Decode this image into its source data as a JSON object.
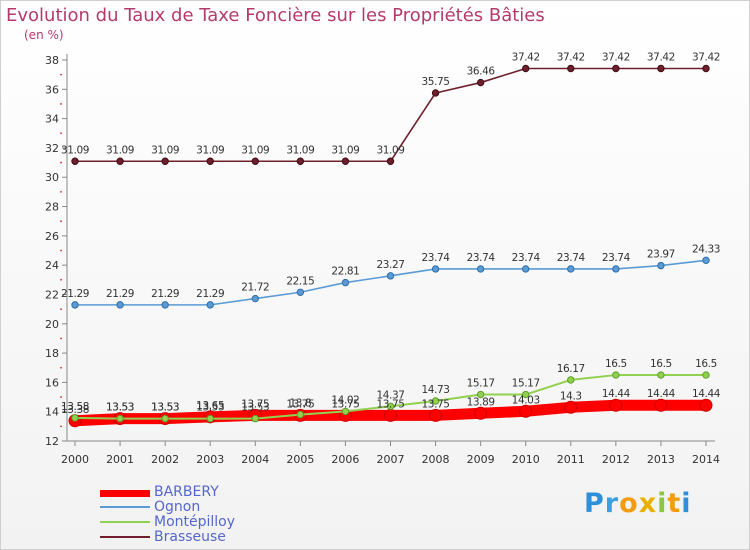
{
  "chart_data": {
    "type": "line",
    "title": "Evolution du Taux de Taxe Foncière sur les Propriétés Bâties",
    "ylabel": "(en %)",
    "xlabel": "",
    "x": [
      "2000",
      "2001",
      "2002",
      "2003",
      "2004",
      "2005",
      "2006",
      "2007",
      "2008",
      "2009",
      "2010",
      "2011",
      "2012",
      "2013",
      "2014"
    ],
    "ylim": [
      12,
      38
    ],
    "yticks": [
      12,
      14,
      16,
      18,
      20,
      22,
      24,
      26,
      28,
      30,
      32,
      34,
      36,
      38
    ],
    "grid": false,
    "legend_position": "bottom-left",
    "series": [
      {
        "name": "BARBERY",
        "color": "#ff0000",
        "values": [
          13.38,
          13.53,
          13.53,
          13.65,
          13.75,
          13.75,
          13.75,
          13.75,
          13.75,
          13.89,
          14.03,
          14.3,
          14.44,
          14.44,
          14.44
        ],
        "labels": [
          "13.38",
          "13.53",
          "13.53",
          "13.65",
          "13.75",
          "13.75",
          "13.75",
          "13.75",
          "13.75",
          "13.89",
          "14.03",
          "14.3",
          "14.44",
          "14.44",
          "14.44"
        ]
      },
      {
        "name": "Ognon",
        "color": "#5b9bd5",
        "values": [
          21.29,
          21.29,
          21.29,
          21.29,
          21.72,
          22.15,
          22.81,
          23.27,
          23.74,
          23.74,
          23.74,
          23.74,
          23.74,
          23.97,
          24.33
        ],
        "labels": [
          "21.29",
          "21.29",
          "21.29",
          "21.29",
          "21.72",
          "22.15",
          "22.81",
          "23.27",
          "23.74",
          "23.74",
          "23.74",
          "23.74",
          "23.74",
          "23.97",
          "24.33"
        ]
      },
      {
        "name": "Montépilloy",
        "color": "#92d050",
        "values": [
          13.58,
          13.53,
          13.53,
          13.53,
          13.53,
          13.8,
          14.02,
          14.37,
          14.73,
          15.17,
          15.17,
          16.17,
          16.5,
          16.5,
          16.5
        ],
        "labels": [
          "13.58",
          "13.53",
          "13.53",
          "13.53",
          "13.53",
          "13.8",
          "14.02",
          "14.37",
          "14.73",
          "15.17",
          "15.17",
          "16.17",
          "16.5",
          "16.5",
          "16.5"
        ]
      },
      {
        "name": "Brasseuse",
        "color": "#6e1f2b",
        "values": [
          31.09,
          31.09,
          31.09,
          31.09,
          31.09,
          31.09,
          31.09,
          31.09,
          35.75,
          36.46,
          37.42,
          37.42,
          37.42,
          37.42,
          37.42
        ],
        "labels": [
          "31.09",
          "31.09",
          "31.09",
          "31.09",
          "31.09",
          "31.09",
          "31.09",
          "31.09",
          "35.75",
          "36.46",
          "37.42",
          "37.42",
          "37.42",
          "37.42",
          "37.42"
        ]
      }
    ]
  },
  "logo": {
    "text": "Proxiti",
    "letters": [
      "P",
      "r",
      "o",
      "x",
      "i",
      "t",
      "i"
    ],
    "colors": [
      "#2f8fd8",
      "#3aa0e0",
      "#f39c12",
      "#e8b000",
      "#8cc63f",
      "#f39c12",
      "#2f8fd8"
    ]
  }
}
